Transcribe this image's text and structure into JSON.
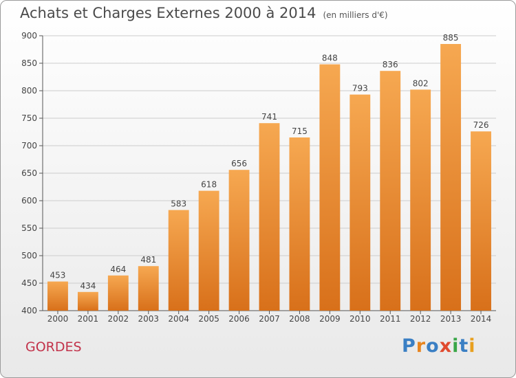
{
  "header": {
    "title": "Achats et Charges Externes 2000 à 2014",
    "unit": "(en milliers d'€)"
  },
  "commune": "GORDES",
  "logo": {
    "text": "Proxiti",
    "colors": [
      "#3a7fc4",
      "#e8851f",
      "#3a7fc4",
      "#e04a2e",
      "#3aa648",
      "#3a7fc4",
      "#e8a01f"
    ]
  },
  "colors": {
    "bar_top": "#f6a851",
    "bar_bottom": "#d8701a",
    "grid": "#cccccc",
    "axis": "#555555",
    "commune": "#c2324a"
  },
  "chart_data": {
    "type": "bar",
    "categories": [
      "2000",
      "2001",
      "2002",
      "2003",
      "2004",
      "2005",
      "2006",
      "2007",
      "2008",
      "2009",
      "2010",
      "2011",
      "2012",
      "2013",
      "2014"
    ],
    "values": [
      453,
      434,
      464,
      481,
      583,
      618,
      656,
      741,
      715,
      848,
      793,
      836,
      802,
      885,
      726
    ],
    "ylim": [
      400,
      900
    ],
    "yticks": [
      400,
      450,
      500,
      550,
      600,
      650,
      700,
      750,
      800,
      850,
      900
    ],
    "grid": true,
    "data_labels": true
  }
}
